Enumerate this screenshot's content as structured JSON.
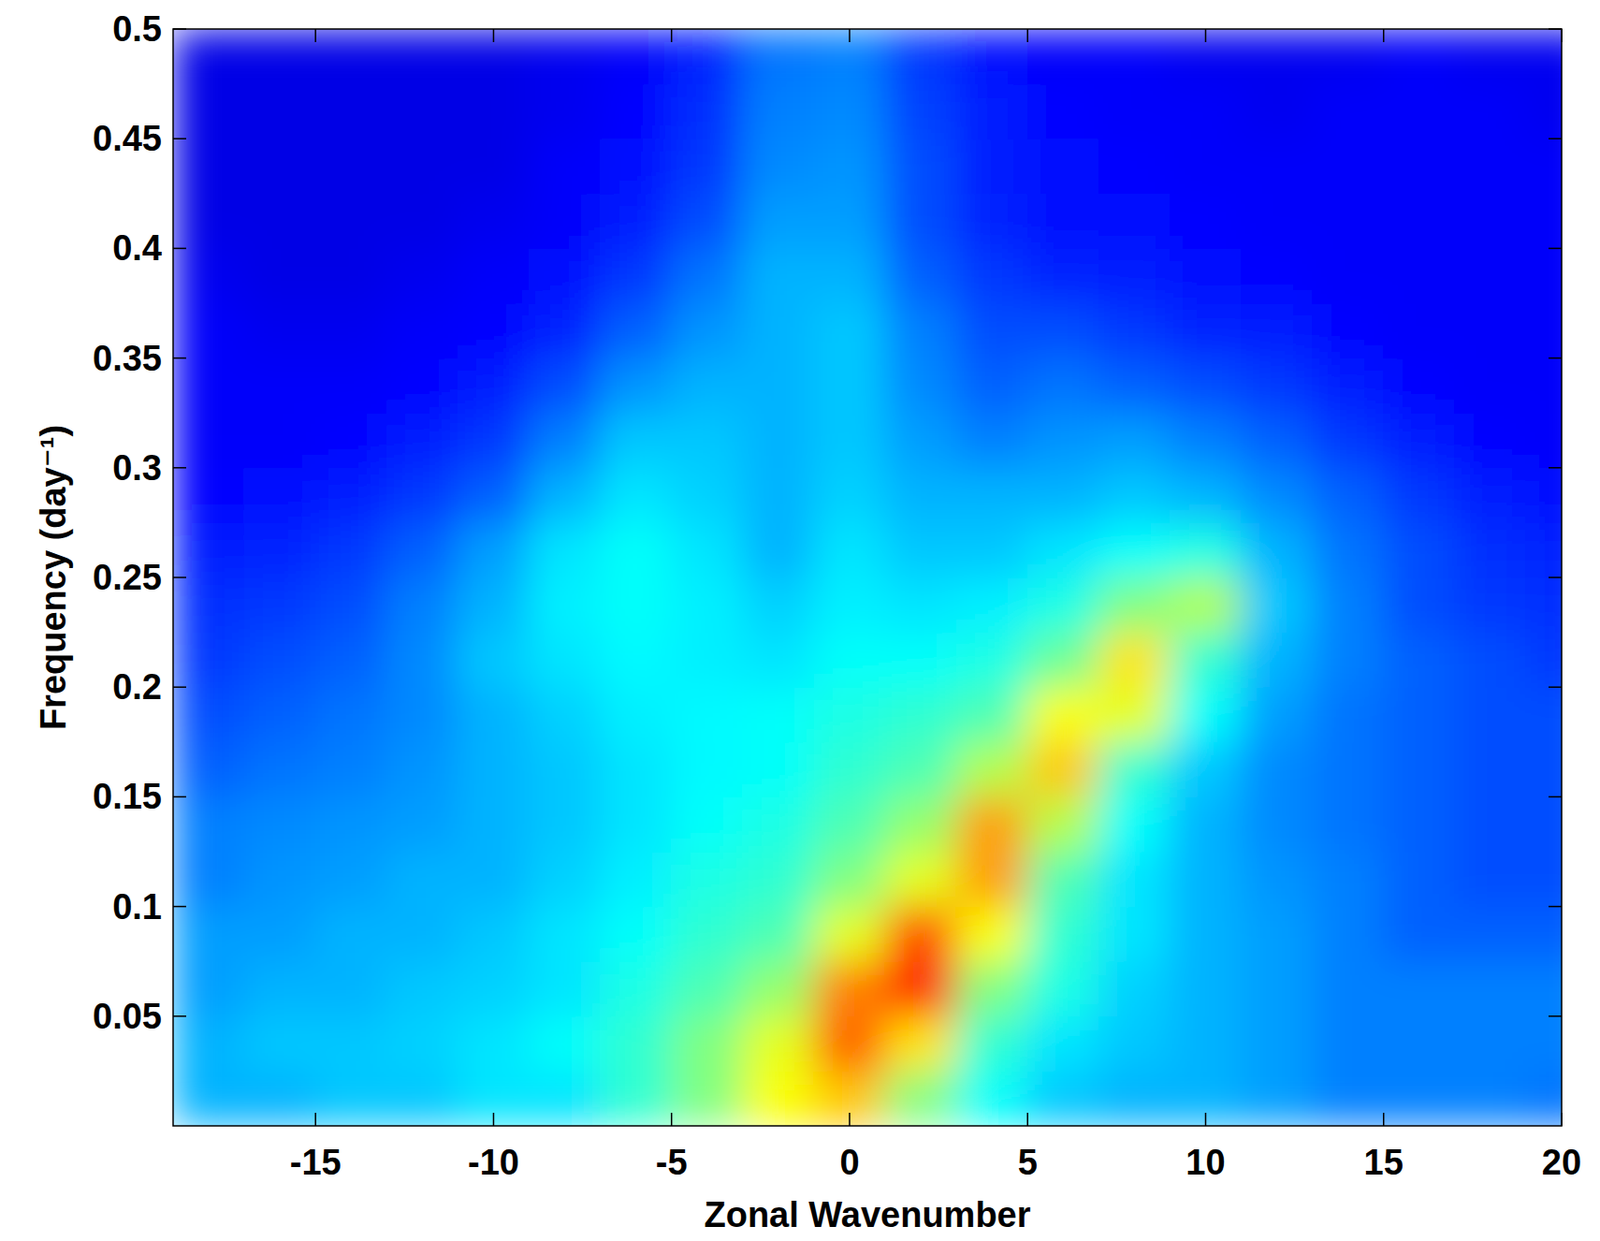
{
  "chart_data": {
    "type": "heatmap",
    "xlabel": "Zonal Wavenumber",
    "ylabel": "Frequency (day⁻¹)",
    "xlim": [
      -19,
      20
    ],
    "ylim": [
      0,
      0.5
    ],
    "xticks": [
      -15,
      -10,
      -5,
      0,
      5,
      10,
      15,
      20
    ],
    "yticks": [
      0.05,
      0.1,
      0.15,
      0.2,
      0.25,
      0.3,
      0.35,
      0.4,
      0.45,
      0.5
    ],
    "zlim": [
      0,
      1
    ],
    "x": [
      -18,
      -16,
      -14,
      -12,
      -10,
      -8,
      -6,
      -4,
      -2,
      0,
      2,
      4,
      6,
      8,
      10,
      12,
      14,
      16,
      18,
      20
    ],
    "y": [
      0.0125,
      0.0375,
      0.0625,
      0.0875,
      0.1125,
      0.1375,
      0.1625,
      0.1875,
      0.2125,
      0.2375,
      0.2625,
      0.2875,
      0.3125,
      0.3375,
      0.3625,
      0.3875,
      0.4125,
      0.4375,
      0.4625,
      0.4875
    ],
    "values": [
      [
        0.3,
        0.3,
        0.32,
        0.32,
        0.35,
        0.35,
        0.42,
        0.5,
        0.62,
        0.68,
        0.5,
        0.38,
        0.32,
        0.3,
        0.3,
        0.28,
        0.25,
        0.25,
        0.25,
        0.24
      ],
      [
        0.3,
        0.32,
        0.32,
        0.33,
        0.35,
        0.38,
        0.42,
        0.5,
        0.6,
        0.78,
        0.65,
        0.42,
        0.35,
        0.32,
        0.3,
        0.28,
        0.25,
        0.25,
        0.25,
        0.25
      ],
      [
        0.28,
        0.3,
        0.3,
        0.32,
        0.33,
        0.35,
        0.4,
        0.45,
        0.52,
        0.75,
        0.85,
        0.5,
        0.4,
        0.33,
        0.3,
        0.28,
        0.25,
        0.25,
        0.25,
        0.25
      ],
      [
        0.28,
        0.28,
        0.3,
        0.3,
        0.32,
        0.35,
        0.38,
        0.42,
        0.45,
        0.6,
        0.8,
        0.62,
        0.42,
        0.35,
        0.3,
        0.28,
        0.25,
        0.22,
        0.22,
        0.22
      ],
      [
        0.25,
        0.27,
        0.28,
        0.3,
        0.3,
        0.33,
        0.36,
        0.4,
        0.42,
        0.5,
        0.6,
        0.72,
        0.45,
        0.35,
        0.3,
        0.27,
        0.25,
        0.22,
        0.2,
        0.2
      ],
      [
        0.25,
        0.26,
        0.27,
        0.28,
        0.3,
        0.32,
        0.35,
        0.38,
        0.4,
        0.45,
        0.52,
        0.72,
        0.55,
        0.38,
        0.3,
        0.26,
        0.24,
        0.22,
        0.2,
        0.2
      ],
      [
        0.22,
        0.24,
        0.25,
        0.27,
        0.3,
        0.32,
        0.35,
        0.37,
        0.38,
        0.42,
        0.45,
        0.55,
        0.68,
        0.42,
        0.32,
        0.26,
        0.24,
        0.22,
        0.2,
        0.2
      ],
      [
        0.2,
        0.22,
        0.24,
        0.26,
        0.3,
        0.33,
        0.36,
        0.37,
        0.38,
        0.4,
        0.42,
        0.45,
        0.62,
        0.6,
        0.38,
        0.28,
        0.24,
        0.22,
        0.2,
        0.2
      ],
      [
        0.18,
        0.2,
        0.22,
        0.26,
        0.32,
        0.35,
        0.37,
        0.36,
        0.35,
        0.38,
        0.38,
        0.4,
        0.48,
        0.65,
        0.42,
        0.3,
        0.25,
        0.22,
        0.2,
        0.18
      ],
      [
        0.17,
        0.18,
        0.2,
        0.25,
        0.3,
        0.36,
        0.38,
        0.36,
        0.33,
        0.36,
        0.35,
        0.36,
        0.4,
        0.5,
        0.55,
        0.32,
        0.25,
        0.2,
        0.18,
        0.17
      ],
      [
        0.15,
        0.16,
        0.18,
        0.22,
        0.28,
        0.35,
        0.38,
        0.35,
        0.3,
        0.35,
        0.32,
        0.32,
        0.35,
        0.38,
        0.4,
        0.3,
        0.24,
        0.2,
        0.17,
        0.16
      ],
      [
        0.13,
        0.14,
        0.15,
        0.18,
        0.22,
        0.3,
        0.35,
        0.33,
        0.3,
        0.33,
        0.3,
        0.3,
        0.3,
        0.32,
        0.3,
        0.26,
        0.22,
        0.18,
        0.15,
        0.14
      ],
      [
        0.12,
        0.12,
        0.13,
        0.15,
        0.18,
        0.25,
        0.32,
        0.32,
        0.3,
        0.32,
        0.28,
        0.25,
        0.27,
        0.28,
        0.25,
        0.22,
        0.18,
        0.15,
        0.13,
        0.12
      ],
      [
        0.12,
        0.12,
        0.12,
        0.13,
        0.15,
        0.2,
        0.27,
        0.3,
        0.3,
        0.32,
        0.26,
        0.22,
        0.24,
        0.22,
        0.2,
        0.18,
        0.15,
        0.13,
        0.12,
        0.12
      ],
      [
        0.12,
        0.11,
        0.11,
        0.12,
        0.13,
        0.16,
        0.22,
        0.27,
        0.3,
        0.32,
        0.25,
        0.2,
        0.2,
        0.18,
        0.16,
        0.15,
        0.13,
        0.12,
        0.12,
        0.12
      ],
      [
        0.11,
        0.1,
        0.1,
        0.11,
        0.12,
        0.14,
        0.18,
        0.24,
        0.3,
        0.3,
        0.22,
        0.18,
        0.16,
        0.15,
        0.14,
        0.13,
        0.12,
        0.12,
        0.12,
        0.12
      ],
      [
        0.1,
        0.1,
        0.1,
        0.1,
        0.11,
        0.12,
        0.15,
        0.2,
        0.28,
        0.28,
        0.2,
        0.16,
        0.14,
        0.14,
        0.13,
        0.12,
        0.12,
        0.12,
        0.12,
        0.12
      ],
      [
        0.1,
        0.1,
        0.1,
        0.1,
        0.1,
        0.12,
        0.14,
        0.18,
        0.26,
        0.27,
        0.2,
        0.15,
        0.14,
        0.13,
        0.12,
        0.12,
        0.12,
        0.12,
        0.12,
        0.12
      ],
      [
        0.1,
        0.1,
        0.1,
        0.1,
        0.1,
        0.11,
        0.13,
        0.17,
        0.25,
        0.26,
        0.19,
        0.15,
        0.13,
        0.12,
        0.12,
        0.11,
        0.12,
        0.12,
        0.12,
        0.11
      ],
      [
        0.1,
        0.1,
        0.1,
        0.1,
        0.1,
        0.11,
        0.12,
        0.16,
        0.24,
        0.25,
        0.18,
        0.14,
        0.12,
        0.12,
        0.11,
        0.11,
        0.11,
        0.12,
        0.11,
        0.11
      ]
    ]
  }
}
